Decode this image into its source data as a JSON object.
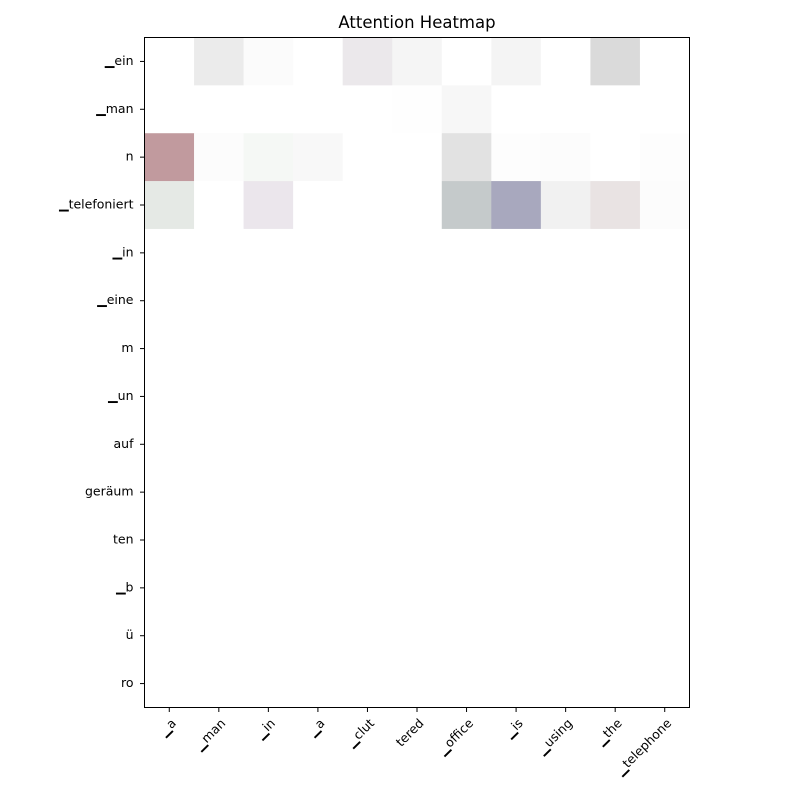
{
  "chart_data": {
    "type": "heatmap",
    "title": "Attention Heatmap",
    "xlabel": "",
    "ylabel": "",
    "x_tokens": [
      "▁a",
      "▁man",
      "▁in",
      "▁a",
      "▁clut",
      "tered",
      "▁office",
      "▁is",
      "▁using",
      "▁the",
      "▁telephone"
    ],
    "y_tokens": [
      "▁ein",
      "▁man",
      "n",
      "▁telefoniert",
      "▁in",
      "▁eine",
      "m",
      "▁un",
      "auf",
      "geräum",
      "ten",
      "▁b",
      "ü",
      "ro"
    ],
    "cells": [
      [
        {
          "color": "#ffffff"
        },
        {
          "color": "#ebebeb"
        },
        {
          "color": "#fbfbfb"
        },
        {
          "color": "#ffffff"
        },
        {
          "color": "#ebe8eb"
        },
        {
          "color": "#f5f5f5"
        },
        {
          "color": "#ffffff"
        },
        {
          "color": "#f4f4f4"
        },
        {
          "color": "#ffffff"
        },
        {
          "color": "#dadada"
        },
        {
          "color": "#ffffff"
        }
      ],
      [
        {
          "color": "#ffffff"
        },
        {
          "color": "#ffffff"
        },
        {
          "color": "#ffffff"
        },
        {
          "color": "#ffffff"
        },
        {
          "color": "#ffffff"
        },
        {
          "color": "#fefefe"
        },
        {
          "color": "#f7f7f7"
        },
        {
          "color": "#ffffff"
        },
        {
          "color": "#ffffff"
        },
        {
          "color": "#ffffff"
        },
        {
          "color": "#ffffff"
        }
      ],
      [
        {
          "color": "#c19a9e"
        },
        {
          "color": "#fcfcfc"
        },
        {
          "color": "#f5f8f5"
        },
        {
          "color": "#f8f8f8"
        },
        {
          "color": "#ffffff"
        },
        {
          "color": "#ffffff"
        },
        {
          "color": "#e2e2e2"
        },
        {
          "color": "#fdfdfd"
        },
        {
          "color": "#fcfcfc"
        },
        {
          "color": "#ffffff"
        },
        {
          "color": "#fdfdfd"
        }
      ],
      [
        {
          "color": "#e5e9e5"
        },
        {
          "color": "#ffffff"
        },
        {
          "color": "#ebe6ec"
        },
        {
          "color": "#ffffff"
        },
        {
          "color": "#ffffff"
        },
        {
          "color": "#ffffff"
        },
        {
          "color": "#c5cacb"
        },
        {
          "color": "#a8a8be"
        },
        {
          "color": "#f1f1f1"
        },
        {
          "color": "#e9e3e3"
        },
        {
          "color": "#fcfcfc"
        }
      ],
      [
        {
          "color": "#ffffff"
        },
        {
          "color": "#ffffff"
        },
        {
          "color": "#ffffff"
        },
        {
          "color": "#ffffff"
        },
        {
          "color": "#ffffff"
        },
        {
          "color": "#ffffff"
        },
        {
          "color": "#ffffff"
        },
        {
          "color": "#ffffff"
        },
        {
          "color": "#ffffff"
        },
        {
          "color": "#ffffff"
        },
        {
          "color": "#ffffff"
        }
      ],
      [
        {
          "color": "#ffffff"
        },
        {
          "color": "#ffffff"
        },
        {
          "color": "#ffffff"
        },
        {
          "color": "#ffffff"
        },
        {
          "color": "#ffffff"
        },
        {
          "color": "#ffffff"
        },
        {
          "color": "#ffffff"
        },
        {
          "color": "#ffffff"
        },
        {
          "color": "#ffffff"
        },
        {
          "color": "#ffffff"
        },
        {
          "color": "#ffffff"
        }
      ],
      [
        {
          "color": "#ffffff"
        },
        {
          "color": "#ffffff"
        },
        {
          "color": "#ffffff"
        },
        {
          "color": "#ffffff"
        },
        {
          "color": "#ffffff"
        },
        {
          "color": "#ffffff"
        },
        {
          "color": "#ffffff"
        },
        {
          "color": "#ffffff"
        },
        {
          "color": "#ffffff"
        },
        {
          "color": "#ffffff"
        },
        {
          "color": "#ffffff"
        }
      ],
      [
        {
          "color": "#ffffff"
        },
        {
          "color": "#ffffff"
        },
        {
          "color": "#ffffff"
        },
        {
          "color": "#ffffff"
        },
        {
          "color": "#ffffff"
        },
        {
          "color": "#ffffff"
        },
        {
          "color": "#ffffff"
        },
        {
          "color": "#ffffff"
        },
        {
          "color": "#ffffff"
        },
        {
          "color": "#ffffff"
        },
        {
          "color": "#ffffff"
        }
      ],
      [
        {
          "color": "#ffffff"
        },
        {
          "color": "#ffffff"
        },
        {
          "color": "#ffffff"
        },
        {
          "color": "#ffffff"
        },
        {
          "color": "#ffffff"
        },
        {
          "color": "#ffffff"
        },
        {
          "color": "#ffffff"
        },
        {
          "color": "#ffffff"
        },
        {
          "color": "#ffffff"
        },
        {
          "color": "#ffffff"
        },
        {
          "color": "#ffffff"
        }
      ],
      [
        {
          "color": "#ffffff"
        },
        {
          "color": "#ffffff"
        },
        {
          "color": "#ffffff"
        },
        {
          "color": "#ffffff"
        },
        {
          "color": "#ffffff"
        },
        {
          "color": "#ffffff"
        },
        {
          "color": "#ffffff"
        },
        {
          "color": "#ffffff"
        },
        {
          "color": "#ffffff"
        },
        {
          "color": "#ffffff"
        },
        {
          "color": "#ffffff"
        }
      ],
      [
        {
          "color": "#ffffff"
        },
        {
          "color": "#ffffff"
        },
        {
          "color": "#ffffff"
        },
        {
          "color": "#ffffff"
        },
        {
          "color": "#ffffff"
        },
        {
          "color": "#ffffff"
        },
        {
          "color": "#ffffff"
        },
        {
          "color": "#ffffff"
        },
        {
          "color": "#ffffff"
        },
        {
          "color": "#ffffff"
        },
        {
          "color": "#ffffff"
        }
      ],
      [
        {
          "color": "#ffffff"
        },
        {
          "color": "#ffffff"
        },
        {
          "color": "#ffffff"
        },
        {
          "color": "#ffffff"
        },
        {
          "color": "#ffffff"
        },
        {
          "color": "#ffffff"
        },
        {
          "color": "#ffffff"
        },
        {
          "color": "#ffffff"
        },
        {
          "color": "#ffffff"
        },
        {
          "color": "#ffffff"
        },
        {
          "color": "#ffffff"
        }
      ],
      [
        {
          "color": "#ffffff"
        },
        {
          "color": "#ffffff"
        },
        {
          "color": "#ffffff"
        },
        {
          "color": "#ffffff"
        },
        {
          "color": "#ffffff"
        },
        {
          "color": "#ffffff"
        },
        {
          "color": "#ffffff"
        },
        {
          "color": "#ffffff"
        },
        {
          "color": "#ffffff"
        },
        {
          "color": "#ffffff"
        },
        {
          "color": "#ffffff"
        }
      ],
      [
        {
          "color": "#ffffff"
        },
        {
          "color": "#ffffff"
        },
        {
          "color": "#ffffff"
        },
        {
          "color": "#ffffff"
        },
        {
          "color": "#ffffff"
        },
        {
          "color": "#ffffff"
        },
        {
          "color": "#ffffff"
        },
        {
          "color": "#ffffff"
        },
        {
          "color": "#ffffff"
        },
        {
          "color": "#ffffff"
        },
        {
          "color": "#ffffff"
        }
      ]
    ],
    "grid": false,
    "legend": "none"
  }
}
